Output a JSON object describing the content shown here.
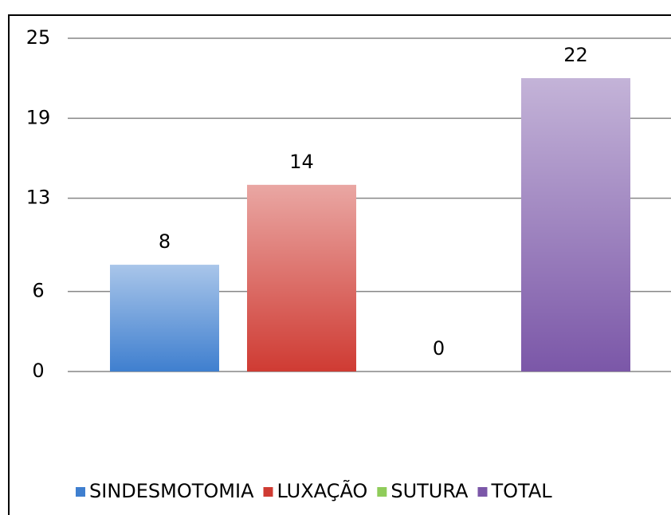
{
  "chart_data": {
    "type": "bar",
    "series": [
      {
        "name": "SINDESMOTOMIA",
        "color": "#3f7fcf",
        "values": [
          8
        ]
      },
      {
        "name": "LUXAÇÃO",
        "color": "#cf3b33",
        "values": [
          14
        ]
      },
      {
        "name": "SUTURA",
        "color": "#8fcc5a",
        "values": [
          0
        ]
      },
      {
        "name": "TOTAL",
        "color": "#7b57a8",
        "values": [
          22
        ]
      }
    ],
    "ylim": [
      0,
      25
    ],
    "yticks": [
      0,
      6,
      13,
      19,
      25
    ],
    "grid": true,
    "legend": "bottom"
  }
}
